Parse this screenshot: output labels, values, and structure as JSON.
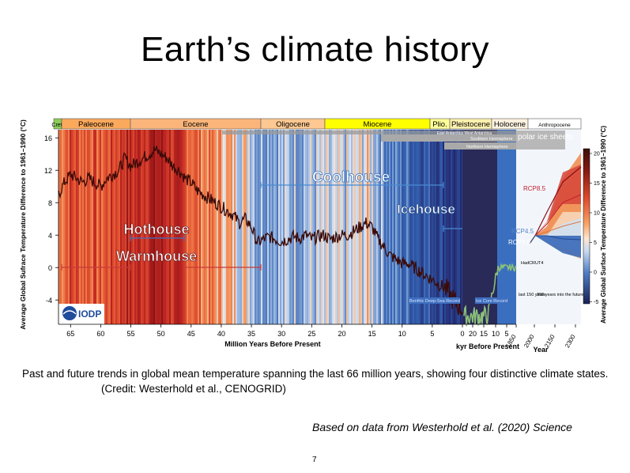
{
  "slide": {
    "title": "Earth’s climate history",
    "caption": "Past and future trends in global mean temperature spanning the last 66 million years, showing four distinctive climate states.",
    "credit": "(Credit: Westerhold et al., CENOGRID)",
    "source_note": "Based on data from Westerhold et al. (2020) Science",
    "page_number": "7"
  },
  "chart_data": {
    "type": "line",
    "title": "",
    "xlabel": "Million Years Before Present",
    "xlabel_kyr": "kyr Before Present",
    "xlabel_year": "Year",
    "ylabel": "Average Global Sufrace Temperature Difference to 1961–1990 (°C)",
    "ylabel_right": "Average Global Surface Temperature Difference to 1961–1990 (°C)",
    "ylim": [
      -7,
      17
    ],
    "yticks": [
      -4,
      0,
      4,
      8,
      12,
      16
    ],
    "xlim_myr": [
      67,
      0
    ],
    "xticks_myr": [
      65,
      60,
      55,
      50,
      45,
      40,
      35,
      30,
      25,
      20,
      15,
      10,
      5,
      0
    ],
    "xticks_kyr": [
      20,
      15,
      10,
      5
    ],
    "xticks_year": [
      1850,
      2000,
      2150,
      2300
    ],
    "colorbar_ticks": [
      20,
      15,
      10,
      5,
      0,
      -5
    ],
    "epochs": [
      {
        "name": "Cret.",
        "start": 67,
        "end": 66,
        "color": "#8ccd57"
      },
      {
        "name": "Paleocene",
        "start": 66,
        "end": 56,
        "color": "#fba95c"
      },
      {
        "name": "Eocene",
        "start": 56,
        "end": 34,
        "color": "#fbb57a"
      },
      {
        "name": "Oligocene",
        "start": 34,
        "end": 23,
        "color": "#fdc891"
      },
      {
        "name": "Miocene",
        "start": 23,
        "end": 5.3,
        "color": "#ffff00"
      },
      {
        "name": "Plio.",
        "start": 5.3,
        "end": 2.6,
        "color": "#ffff99"
      },
      {
        "name": "Pleistocene",
        "start": 2.6,
        "end": 0,
        "color": "#fff2ae"
      },
      {
        "name": "Holocene",
        "start": 0,
        "end": 0,
        "color": "#fef2e0"
      },
      {
        "name": "Anthropocene",
        "start": 0,
        "end": 0,
        "color": "#ffffff"
      }
    ],
    "states": [
      {
        "name": "Hothouse",
        "start": 56,
        "end": 47
      },
      {
        "name": "Warmhouse",
        "start": 66,
        "end": 34
      },
      {
        "name": "Coolhouse",
        "start": 34,
        "end": 3.3
      },
      {
        "name": "Icehouse",
        "start": 3.3,
        "end": 0
      }
    ],
    "annotations": {
      "ice_antarctica": "East Antarctica West Antarctica",
      "ice_south": "Southern Hemisphere",
      "ice_north": "Northern Hemisphere",
      "polar_ice": "polar ice sheets",
      "benthic_record": "Benthic Deep-Sea Record",
      "ice_core_record": "Ice Core Record",
      "hadcrut": "HadCRUT4",
      "last_150": "last 150 years",
      "next_300": "300 years into the future",
      "rcp85": "RCP8.5",
      "rcp45": "RCP4.5",
      "rcp26": "RCP2.6",
      "logo": "IODP"
    },
    "series": [
      {
        "name": "Benthic Deep-Sea Record",
        "x": [
          67,
          66,
          65,
          64,
          63,
          62,
          61,
          60,
          59,
          58,
          57,
          56,
          55,
          54,
          53,
          52,
          51,
          50,
          49,
          48,
          47,
          46,
          45,
          44,
          43,
          42,
          41,
          40,
          39,
          38,
          37,
          36,
          35,
          34,
          33,
          32,
          31,
          30,
          29,
          28,
          27,
          26,
          25,
          24,
          23,
          22,
          21,
          20,
          19,
          18,
          17,
          16,
          15,
          14,
          13,
          12,
          11,
          10,
          9,
          8,
          7,
          6,
          5,
          4,
          3,
          2,
          1,
          0
        ],
        "y": [
          9,
          10.5,
          11.5,
          11,
          10.5,
          11,
          10.5,
          10,
          11,
          11.5,
          12,
          13.5,
          12.5,
          13,
          13.5,
          14,
          14.5,
          14,
          13.5,
          12.5,
          12,
          11,
          10.5,
          9.5,
          9,
          8.5,
          8,
          7.5,
          7,
          6.5,
          5.5,
          6,
          5,
          3,
          3.5,
          3.8,
          3.5,
          3.2,
          3.5,
          3.8,
          3.6,
          4,
          3.5,
          3.8,
          4,
          3.5,
          3.8,
          4,
          4,
          4.5,
          5,
          5.5,
          5,
          3.5,
          2.5,
          1.5,
          1,
          0.5,
          0.5,
          0,
          -0.5,
          -1,
          -1.5,
          -2,
          -2.5,
          -3.5,
          -4.5,
          -5
        ]
      }
    ]
  }
}
